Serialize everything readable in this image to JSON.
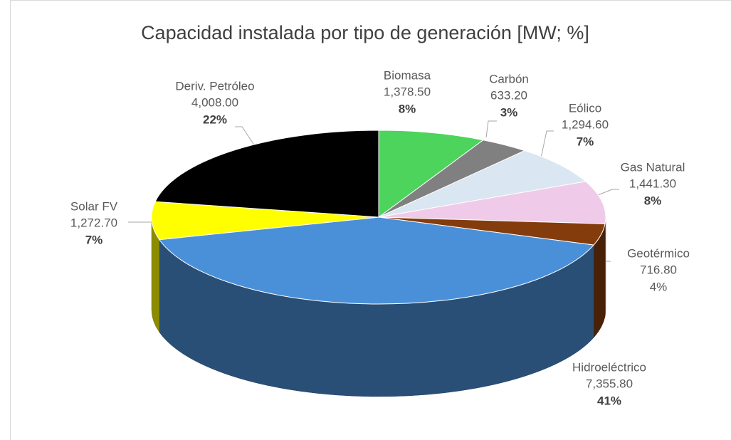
{
  "chart_data": {
    "type": "pie",
    "title": "Capacidad instalada por tipo de generación [MW; %]",
    "categories": [
      "Biomasa",
      "Carbón",
      "Eólico",
      "Gas Natural",
      "Geotérmico",
      "Hidroeléctrico",
      "Solar FV",
      "Deriv. Petróleo"
    ],
    "values": [
      1378.5,
      633.2,
      1294.6,
      1441.3,
      716.8,
      7355.8,
      1272.7,
      4008.0
    ],
    "value_labels": [
      "1,378.50",
      "633.20",
      "1,294.60",
      "1,441.30",
      "716.80",
      "7,355.80",
      "1,272.70",
      "4,008.00"
    ],
    "percent_labels": [
      "8%",
      "3%",
      "7%",
      "8%",
      "4%",
      "41%",
      "7%",
      "22%"
    ],
    "colors": [
      "#4cd45c",
      "#808080",
      "#dae6f1",
      "#f0cbe9",
      "#843c0c",
      "#4a90d9",
      "#ffff00",
      "#000000"
    ]
  }
}
